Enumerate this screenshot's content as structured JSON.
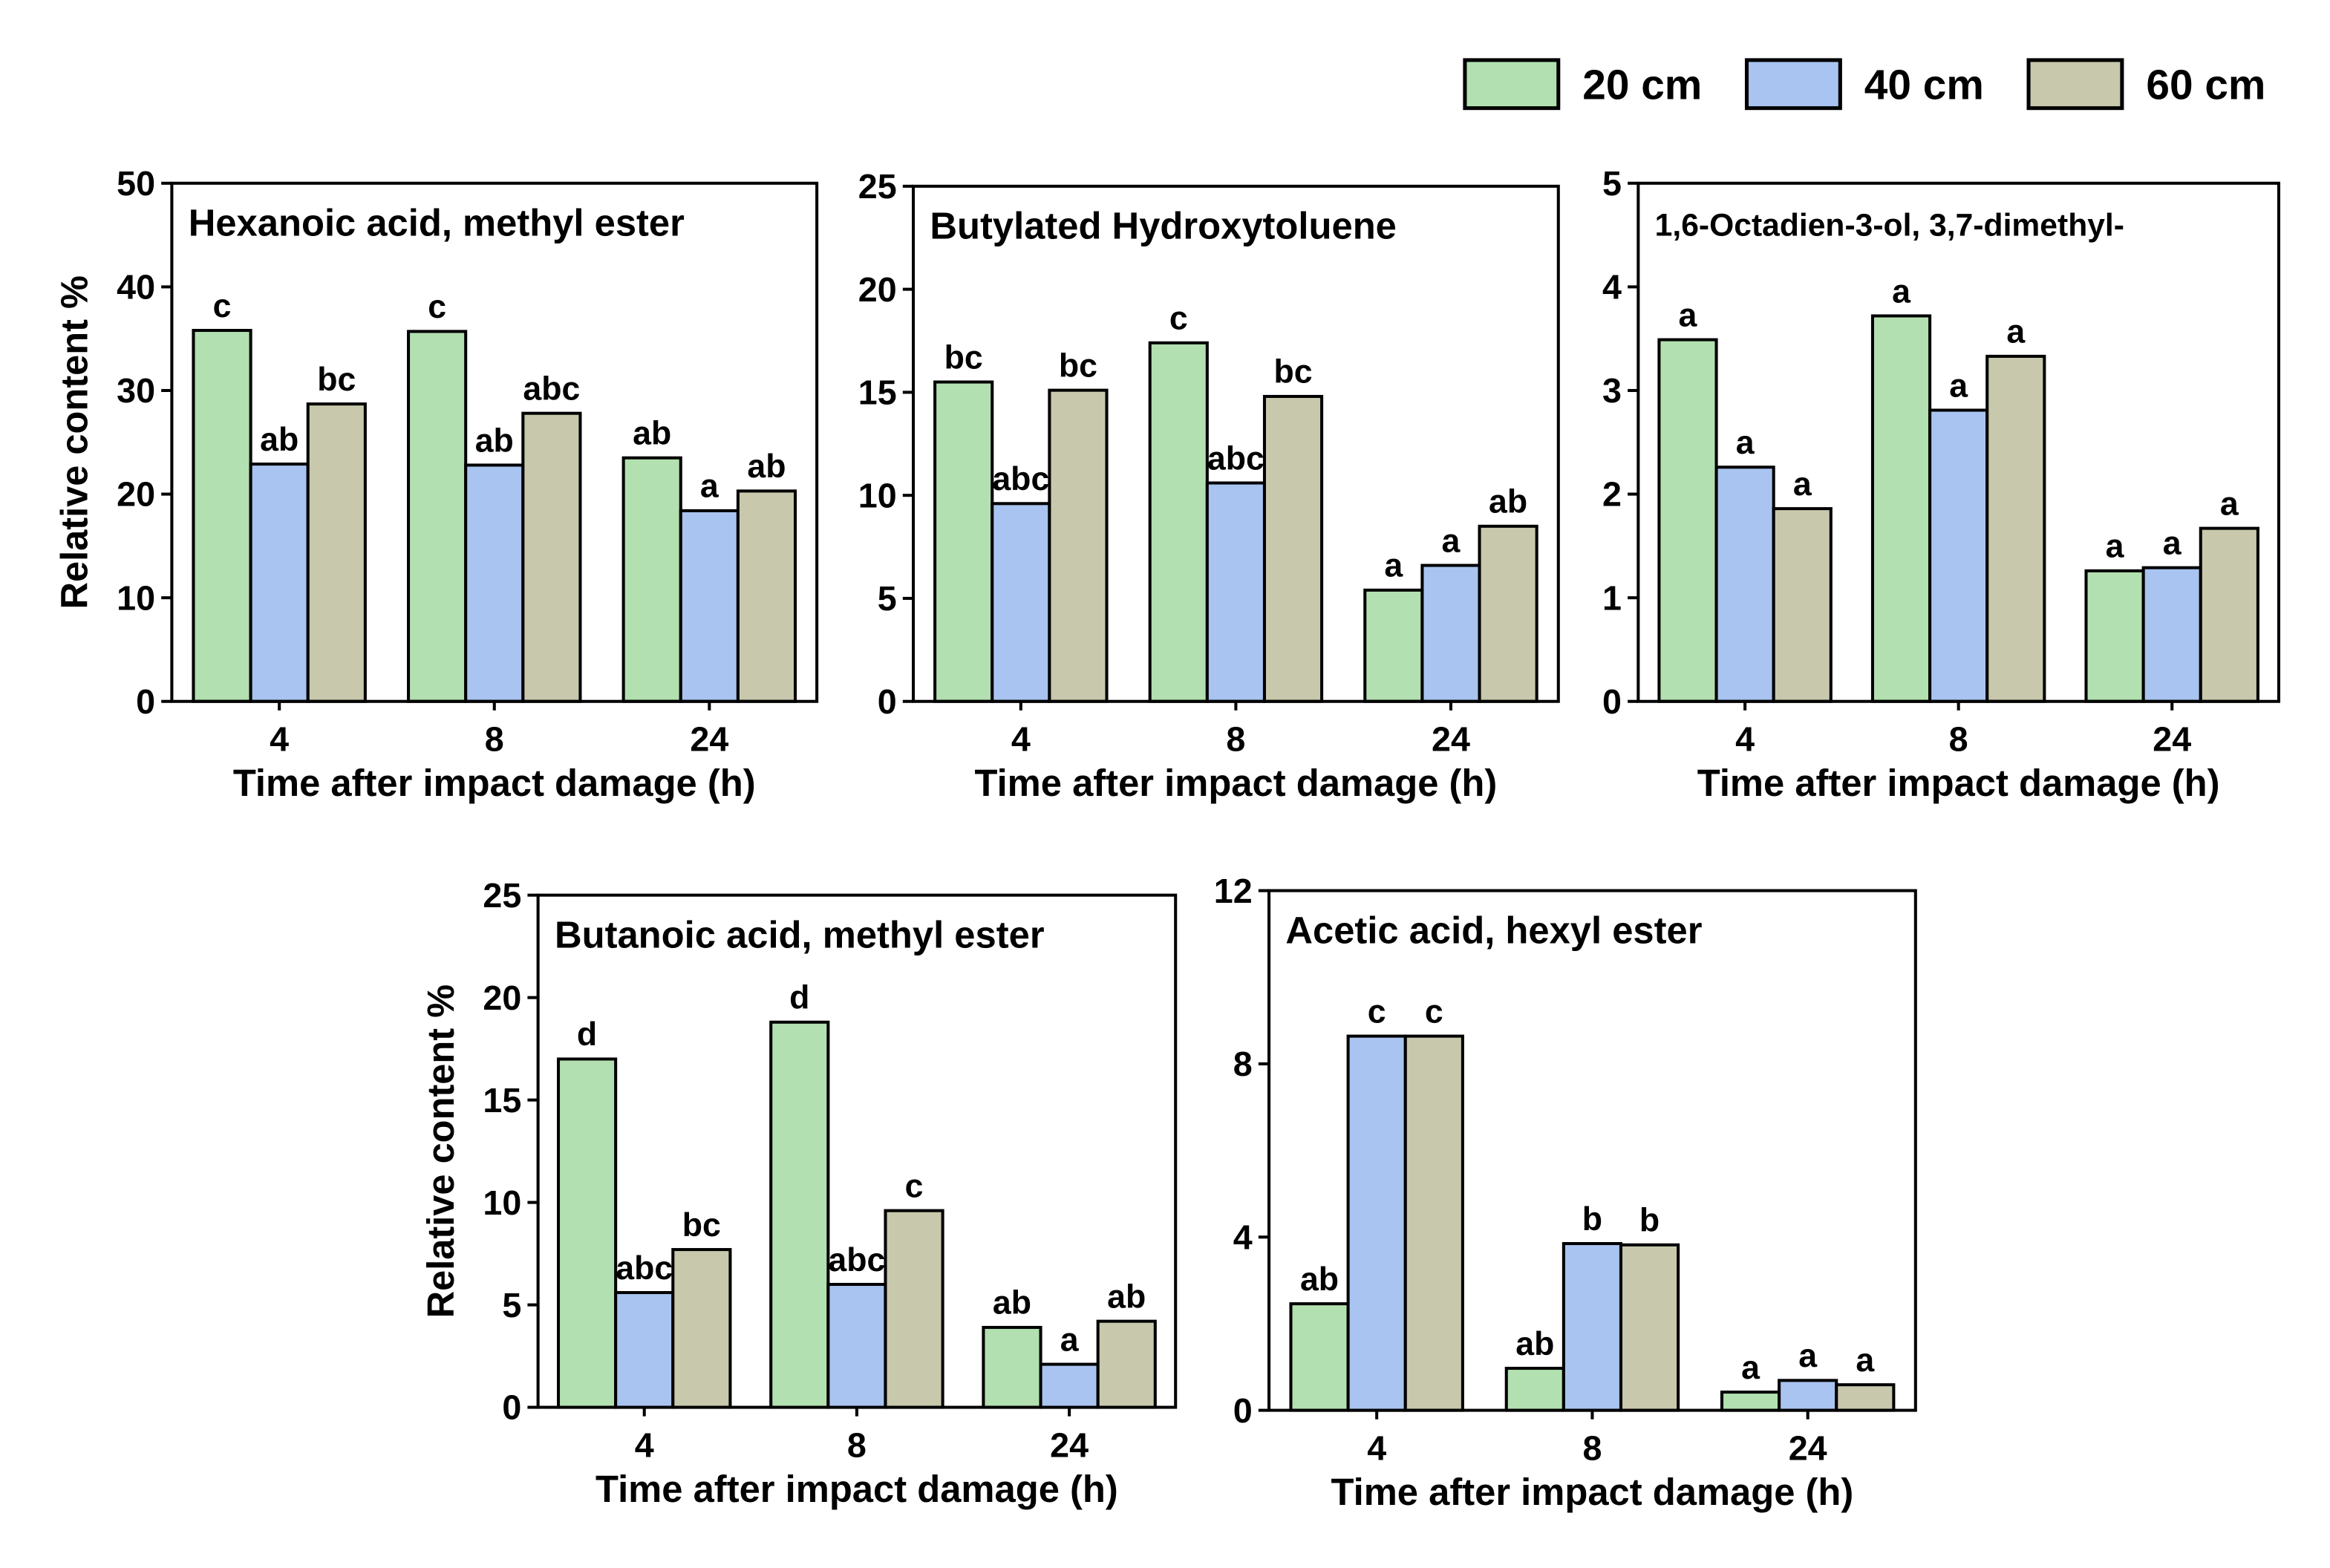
{
  "chart_data": [
    {
      "type": "bar",
      "title": "Hexanoic acid, methyl ester",
      "x_label": "Time after impact damage (h)",
      "y_label": "Relative content %",
      "categories": [
        "4",
        "8",
        "24"
      ],
      "series": [
        {
          "name": "20 cm",
          "color": "#b3e0b0",
          "values": [
            35.8,
            35.7,
            23.5
          ],
          "letters": [
            "c",
            "c",
            "ab"
          ]
        },
        {
          "name": "40 cm",
          "color": "#a9c4f0",
          "values": [
            22.9,
            22.8,
            18.4
          ],
          "letters": [
            "ab",
            "ab",
            "a"
          ]
        },
        {
          "name": "60 cm",
          "color": "#c8c8ad",
          "values": [
            28.7,
            27.8,
            20.3
          ],
          "letters": [
            "bc",
            "abc",
            "ab"
          ]
        }
      ],
      "ylim": [
        0,
        50
      ],
      "yticks": [
        0,
        10,
        20,
        30,
        40,
        50
      ]
    },
    {
      "type": "bar",
      "title": "Butylated Hydroxytoluene",
      "x_label": "Time after impact damage (h)",
      "categories": [
        "4",
        "8",
        "24"
      ],
      "series": [
        {
          "color": "#b3e0b0",
          "values": [
            15.5,
            17.4,
            5.4
          ],
          "letters": [
            "bc",
            "c",
            "a"
          ]
        },
        {
          "color": "#a9c4f0",
          "values": [
            9.6,
            10.6,
            6.6
          ],
          "letters": [
            "abc",
            "abc",
            "a"
          ]
        },
        {
          "color": "#c8c8ad",
          "values": [
            15.1,
            14.8,
            8.5
          ],
          "letters": [
            "bc",
            "bc",
            "ab"
          ]
        }
      ],
      "ylim": [
        0,
        25
      ],
      "yticks": [
        0,
        5,
        10,
        15,
        20,
        25
      ]
    },
    {
      "type": "bar",
      "title": "1,6-Octadien-3-ol, 3,7-dimethyl-",
      "x_label": "Time after impact damage (h)",
      "categories": [
        "4",
        "8",
        "24"
      ],
      "series": [
        {
          "color": "#b3e0b0",
          "values": [
            3.49,
            3.72,
            1.26
          ],
          "letters": [
            "a",
            "a",
            "a"
          ]
        },
        {
          "color": "#a9c4f0",
          "values": [
            2.26,
            2.81,
            1.29
          ],
          "letters": [
            "a",
            "a",
            "a"
          ]
        },
        {
          "color": "#c8c8ad",
          "values": [
            1.86,
            3.33,
            1.67
          ],
          "letters": [
            "a",
            "a",
            "a"
          ]
        }
      ],
      "ylim": [
        0,
        5
      ],
      "yticks": [
        0,
        1,
        2,
        3,
        4,
        5
      ]
    },
    {
      "type": "bar",
      "title": "Butanoic acid, methyl ester",
      "x_label": "Time after impact damage (h)",
      "y_label": "Relative content %",
      "categories": [
        "4",
        "8",
        "24"
      ],
      "series": [
        {
          "color": "#b3e0b0",
          "values": [
            17.0,
            18.8,
            3.9
          ],
          "letters": [
            "d",
            "d",
            "ab"
          ]
        },
        {
          "color": "#a9c4f0",
          "values": [
            5.6,
            6.0,
            2.1
          ],
          "letters": [
            "abc",
            "abc",
            "a"
          ]
        },
        {
          "color": "#c8c8ad",
          "values": [
            7.7,
            9.6,
            4.2
          ],
          "letters": [
            "bc",
            "c",
            "ab"
          ]
        }
      ],
      "ylim": [
        0,
        25
      ],
      "yticks": [
        0,
        5,
        10,
        15,
        20,
        25
      ]
    },
    {
      "type": "bar",
      "title": "Acetic acid, hexyl ester",
      "x_label": "Time after impact damage (h)",
      "categories": [
        "4",
        "8",
        "24"
      ],
      "series": [
        {
          "color": "#b3e0b0",
          "values": [
            2.46,
            0.97,
            0.42
          ],
          "letters": [
            "ab",
            "ab",
            "a"
          ]
        },
        {
          "color": "#a9c4f0",
          "values": [
            8.64,
            3.85,
            0.69
          ],
          "letters": [
            "c",
            "b",
            "a"
          ]
        },
        {
          "color": "#c8c8ad",
          "values": [
            8.64,
            3.82,
            0.59
          ],
          "letters": [
            "c",
            "b",
            "a"
          ]
        }
      ],
      "ylim": [
        0,
        12
      ],
      "yticks": [
        0,
        4,
        8,
        12
      ]
    }
  ]
}
